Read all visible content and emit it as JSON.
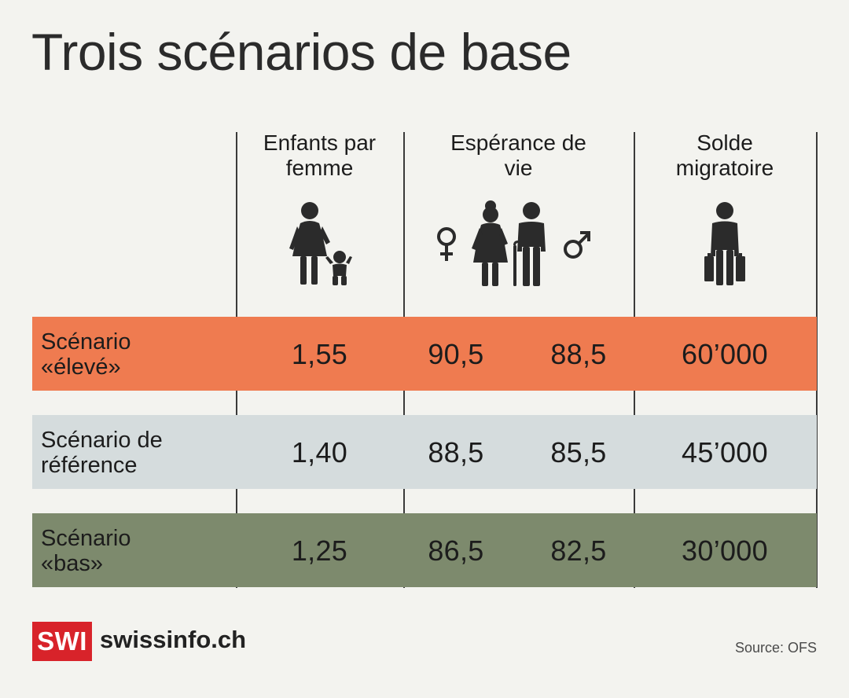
{
  "title": "Trois scénarios de base",
  "columns": [
    {
      "line1": "Enfants par",
      "line2": "femme"
    },
    {
      "line1": "Espérance de",
      "line2": "vie"
    },
    {
      "line1": "Solde",
      "line2": "migratoire"
    }
  ],
  "icons": {
    "fertility": "mother-child-icon",
    "life_expectancy": "elderly-couple-icon",
    "female": "female-symbol-icon",
    "male": "male-symbol-icon",
    "migration": "traveler-suitcases-icon"
  },
  "colors": {
    "high": "#ef7b50",
    "reference": "#d5dcdd",
    "low": "#7d8a6d"
  },
  "chart_data": {
    "type": "table",
    "title": "Trois scénarios de base",
    "columns": [
      "Enfants par femme",
      "Espérance de vie",
      "Espérance de vie",
      "Solde migratoire"
    ],
    "rows": [
      {
        "label_line1": "Scénario",
        "label_line2": "«élevé»",
        "fertility": "1,55",
        "life_female": "90,5",
        "life_male": "88,5",
        "migration": "60’000"
      },
      {
        "label_line1": "Scénario de",
        "label_line2": "référence",
        "fertility": "1,40",
        "life_female": "88,5",
        "life_male": "85,5",
        "migration": "45’000"
      },
      {
        "label_line1": "Scénario",
        "label_line2": "«bas»",
        "fertility": "1,25",
        "life_female": "86,5",
        "life_male": "82,5",
        "migration": "30’000"
      }
    ]
  },
  "footer": {
    "logo_mark": "SWI",
    "logo_text": "swissinfo.ch",
    "source": "Source: OFS"
  }
}
